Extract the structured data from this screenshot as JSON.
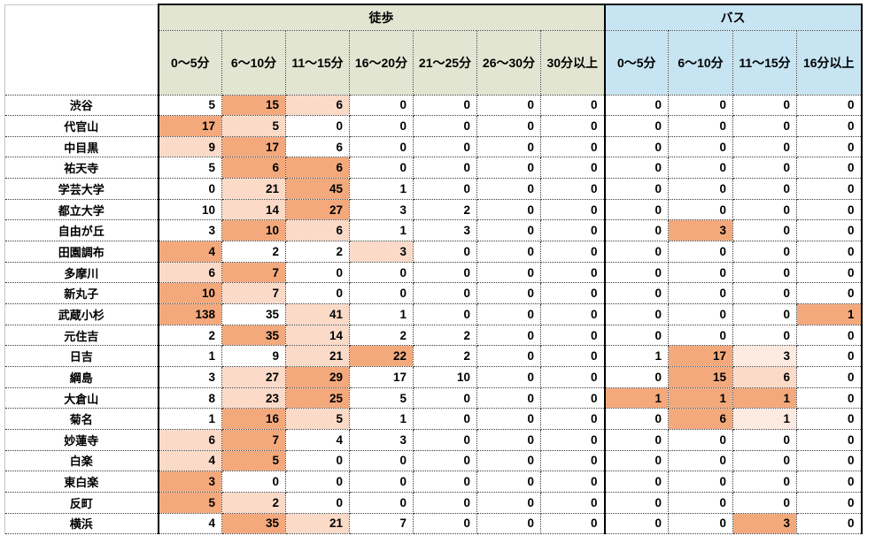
{
  "table": {
    "corner_label": "",
    "groups": [
      {
        "id": "walk",
        "label": "徒歩",
        "span": 7,
        "bg": "#e1e5d1"
      },
      {
        "id": "bus",
        "label": "バス",
        "span": 4,
        "bg": "#c6e4f2"
      }
    ],
    "columns": [
      {
        "label": "0〜5分",
        "group": "walk"
      },
      {
        "label": "6〜10分",
        "group": "walk"
      },
      {
        "label": "11〜15分",
        "group": "walk"
      },
      {
        "label": "16〜20分",
        "group": "walk"
      },
      {
        "label": "21〜25分",
        "group": "walk"
      },
      {
        "label": "26〜30分",
        "group": "walk"
      },
      {
        "label": "30分以上",
        "group": "walk"
      },
      {
        "label": "0〜5分",
        "group": "bus"
      },
      {
        "label": "6〜10分",
        "group": "bus"
      },
      {
        "label": "11〜15分",
        "group": "bus"
      },
      {
        "label": "16分以上",
        "group": "bus"
      }
    ],
    "highlight_palette": {
      "1": "#fdeae0",
      "2": "#fbdac8",
      "3": "#f4a97c"
    },
    "rows": [
      {
        "station": "渋谷",
        "values": [
          5,
          15,
          6,
          0,
          0,
          0,
          0,
          0,
          0,
          0,
          0
        ],
        "highlights": [
          0,
          3,
          2,
          0,
          0,
          0,
          0,
          0,
          0,
          0,
          0
        ]
      },
      {
        "station": "代官山",
        "values": [
          17,
          5,
          0,
          0,
          0,
          0,
          0,
          0,
          0,
          0,
          0
        ],
        "highlights": [
          3,
          2,
          0,
          0,
          0,
          0,
          0,
          0,
          0,
          0,
          0
        ]
      },
      {
        "station": "中目黒",
        "values": [
          9,
          17,
          6,
          0,
          0,
          0,
          0,
          0,
          0,
          0,
          0
        ],
        "highlights": [
          2,
          3,
          0,
          0,
          0,
          0,
          0,
          0,
          0,
          0,
          0
        ]
      },
      {
        "station": "祐天寺",
        "values": [
          5,
          6,
          6,
          0,
          0,
          0,
          0,
          0,
          0,
          0,
          0
        ],
        "highlights": [
          0,
          3,
          3,
          0,
          0,
          0,
          0,
          0,
          0,
          0,
          0
        ]
      },
      {
        "station": "学芸大学",
        "values": [
          0,
          21,
          45,
          1,
          0,
          0,
          0,
          0,
          0,
          0,
          0
        ],
        "highlights": [
          0,
          2,
          3,
          0,
          0,
          0,
          0,
          0,
          0,
          0,
          0
        ]
      },
      {
        "station": "都立大学",
        "values": [
          10,
          14,
          27,
          3,
          2,
          0,
          0,
          0,
          0,
          0,
          0
        ],
        "highlights": [
          0,
          2,
          3,
          0,
          0,
          0,
          0,
          0,
          0,
          0,
          0
        ]
      },
      {
        "station": "自由が丘",
        "values": [
          3,
          10,
          6,
          1,
          3,
          0,
          0,
          0,
          3,
          0,
          0
        ],
        "highlights": [
          0,
          3,
          2,
          0,
          0,
          0,
          0,
          0,
          3,
          0,
          0
        ]
      },
      {
        "station": "田園調布",
        "values": [
          4,
          2,
          2,
          3,
          0,
          0,
          0,
          0,
          0,
          0,
          0
        ],
        "highlights": [
          3,
          0,
          0,
          2,
          0,
          0,
          0,
          0,
          0,
          0,
          0
        ]
      },
      {
        "station": "多摩川",
        "values": [
          6,
          7,
          0,
          0,
          0,
          0,
          0,
          0,
          0,
          0,
          0
        ],
        "highlights": [
          2,
          3,
          0,
          0,
          0,
          0,
          0,
          0,
          0,
          0,
          0
        ]
      },
      {
        "station": "新丸子",
        "values": [
          10,
          7,
          0,
          0,
          0,
          0,
          0,
          0,
          0,
          0,
          0
        ],
        "highlights": [
          3,
          2,
          0,
          0,
          0,
          0,
          0,
          0,
          0,
          0,
          0
        ]
      },
      {
        "station": "武蔵小杉",
        "values": [
          138,
          35,
          41,
          1,
          0,
          0,
          0,
          0,
          0,
          0,
          1
        ],
        "highlights": [
          3,
          0,
          2,
          0,
          0,
          0,
          0,
          0,
          0,
          0,
          3
        ]
      },
      {
        "station": "元住吉",
        "values": [
          2,
          35,
          14,
          2,
          2,
          0,
          0,
          0,
          0,
          0,
          0
        ],
        "highlights": [
          0,
          3,
          2,
          0,
          0,
          0,
          0,
          0,
          0,
          0,
          0
        ]
      },
      {
        "station": "日吉",
        "values": [
          1,
          9,
          21,
          22,
          2,
          0,
          0,
          1,
          17,
          3,
          0
        ],
        "highlights": [
          0,
          0,
          2,
          3,
          0,
          0,
          0,
          0,
          3,
          1,
          0
        ]
      },
      {
        "station": "綱島",
        "values": [
          3,
          27,
          29,
          17,
          10,
          0,
          0,
          0,
          15,
          6,
          0
        ],
        "highlights": [
          0,
          2,
          3,
          0,
          0,
          0,
          0,
          0,
          3,
          2,
          0
        ]
      },
      {
        "station": "大倉山",
        "values": [
          8,
          23,
          25,
          5,
          0,
          0,
          0,
          1,
          1,
          1,
          0
        ],
        "highlights": [
          0,
          2,
          3,
          0,
          0,
          0,
          0,
          3,
          3,
          3,
          0
        ]
      },
      {
        "station": "菊名",
        "values": [
          1,
          16,
          5,
          1,
          0,
          0,
          0,
          0,
          6,
          1,
          0
        ],
        "highlights": [
          0,
          3,
          2,
          0,
          0,
          0,
          0,
          0,
          3,
          1,
          0
        ]
      },
      {
        "station": "妙蓮寺",
        "values": [
          6,
          7,
          4,
          3,
          0,
          0,
          0,
          0,
          0,
          0,
          0
        ],
        "highlights": [
          2,
          3,
          0,
          0,
          0,
          0,
          0,
          0,
          0,
          0,
          0
        ]
      },
      {
        "station": "白楽",
        "values": [
          4,
          5,
          0,
          0,
          0,
          0,
          0,
          0,
          0,
          0,
          0
        ],
        "highlights": [
          2,
          3,
          0,
          0,
          0,
          0,
          0,
          0,
          0,
          0,
          0
        ]
      },
      {
        "station": "東白楽",
        "values": [
          3,
          0,
          0,
          0,
          0,
          0,
          0,
          0,
          0,
          0,
          0
        ],
        "highlights": [
          3,
          0,
          0,
          0,
          0,
          0,
          0,
          0,
          0,
          0,
          0
        ]
      },
      {
        "station": "反町",
        "values": [
          5,
          2,
          0,
          0,
          0,
          0,
          0,
          0,
          0,
          0,
          0
        ],
        "highlights": [
          3,
          2,
          0,
          0,
          0,
          0,
          0,
          0,
          0,
          0,
          0
        ]
      },
      {
        "station": "横浜",
        "values": [
          4,
          35,
          21,
          7,
          0,
          0,
          0,
          0,
          0,
          3,
          0
        ],
        "highlights": [
          0,
          3,
          2,
          0,
          0,
          0,
          0,
          0,
          0,
          3,
          0
        ]
      }
    ]
  }
}
